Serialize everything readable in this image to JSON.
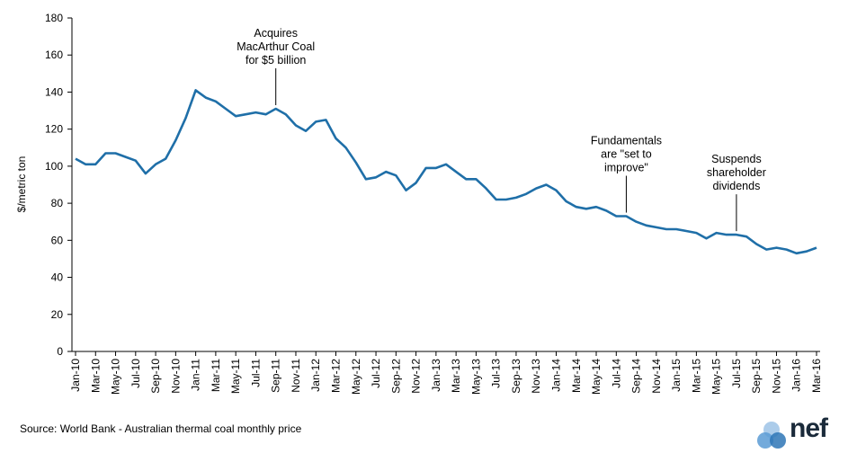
{
  "chart_data": {
    "type": "line",
    "title": "",
    "xlabel": "",
    "ylabel": "$/metric ton",
    "ylim": [
      0,
      180
    ],
    "yticks": [
      0,
      20,
      40,
      60,
      80,
      100,
      120,
      140,
      160,
      180
    ],
    "grid": false,
    "x_tick_labels": [
      "Jan-10",
      "Mar-10",
      "May-10",
      "Jul-10",
      "Sep-10",
      "Nov-10",
      "Jan-11",
      "Mar-11",
      "May-11",
      "Jul-11",
      "Sep-11",
      "Nov-11",
      "Jan-12",
      "Mar-12",
      "May-12",
      "Jul-12",
      "Sep-12",
      "Nov-12",
      "Jan-13",
      "Mar-13",
      "May-13",
      "Jul-13",
      "Sep-13",
      "Nov-13",
      "Jan-14",
      "Mar-14",
      "May-14",
      "Jul-14",
      "Sep-14",
      "Nov-14",
      "Jan-15",
      "Mar-15",
      "May-15",
      "Jul-15",
      "Sep-15",
      "Nov-15",
      "Jan-16",
      "Mar-16"
    ],
    "series": [
      {
        "color": "#1f6fa8",
        "values": [
          104,
          101,
          101,
          107,
          107,
          105,
          103,
          96,
          101,
          104,
          114,
          126,
          141,
          137,
          135,
          131,
          127,
          128,
          129,
          128,
          131,
          128,
          122,
          119,
          124,
          125,
          115,
          110,
          102,
          93,
          94,
          97,
          95,
          87,
          91,
          99,
          99,
          101,
          97,
          93,
          93,
          88,
          82,
          82,
          83,
          85,
          88,
          90,
          87,
          81,
          78,
          77,
          78,
          76,
          73,
          73,
          70,
          68,
          67,
          66,
          66,
          65,
          64,
          61,
          64,
          63,
          63,
          62,
          58,
          55,
          56,
          55,
          53,
          54,
          56
        ]
      }
    ],
    "annotations": [
      {
        "lines": [
          "Acquires",
          "MacArthur Coal",
          "for $5 billion"
        ],
        "point_index": 20
      },
      {
        "lines": [
          "Fundamentals",
          "are \"set to",
          "improve\""
        ],
        "point_index": 55
      },
      {
        "lines": [
          "Suspends",
          "shareholder",
          "dividends"
        ],
        "point_index": 66
      }
    ]
  },
  "source": "Source: World Bank - Australian thermal coal monthly price",
  "logo": {
    "text": "nef",
    "color": "#5b9bd5"
  }
}
